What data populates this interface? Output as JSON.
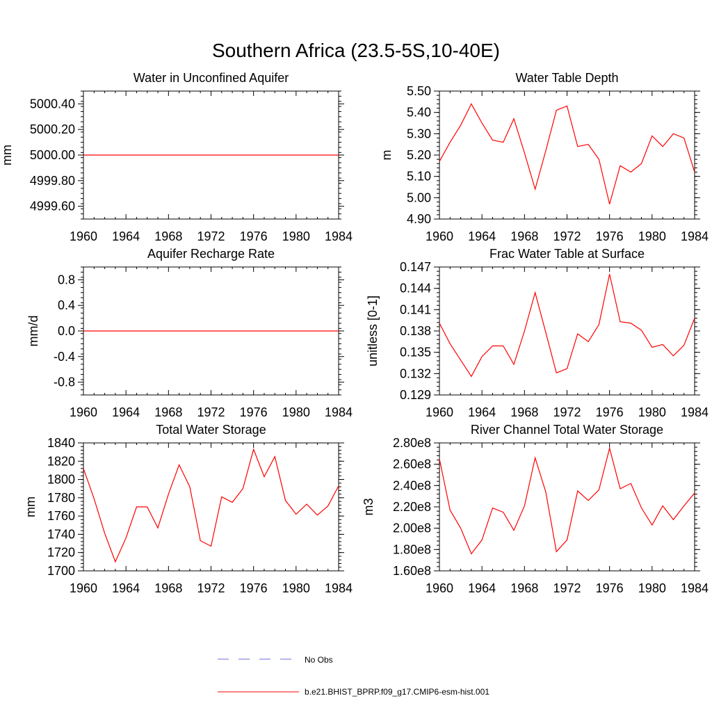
{
  "figure": {
    "title": "Southern Africa (23.5-5S,10-40E)",
    "legend": [
      {
        "label": "No Obs",
        "color": "#6a6ad8",
        "dash": "dashed"
      },
      {
        "label": "b.e21.BHIST_BPRP.f09_g17.CMIP6-esm-hist.001",
        "color": "#ff0000",
        "dash": "solid"
      }
    ]
  },
  "chart_data": [
    {
      "type": "line",
      "title": "Water in Unconfined Aquifer",
      "ylabel": "mm",
      "xlim": [
        1960,
        1984
      ],
      "ylim": [
        4999.5,
        5000.5
      ],
      "xticks": [
        1960,
        1964,
        1968,
        1972,
        1976,
        1980,
        1984
      ],
      "xtick_labels": [
        "1960",
        "1964",
        "1968",
        "1972",
        "1976",
        "1980",
        "1984"
      ],
      "yticks": [
        4999.6,
        4999.8,
        5000.0,
        5000.2,
        5000.4
      ],
      "ytick_labels": [
        "4999.60",
        "4999.80",
        "5000.00",
        "5000.20",
        "5000.40"
      ],
      "series": [
        {
          "name": "b.e21.BHIST_BPRP.f09_g17.CMIP6-esm-hist.001",
          "color": "#ff0000",
          "x": [
            1960,
            1961,
            1962,
            1963,
            1964,
            1965,
            1966,
            1967,
            1968,
            1969,
            1970,
            1971,
            1972,
            1973,
            1974,
            1975,
            1976,
            1977,
            1978,
            1979,
            1980,
            1981,
            1982,
            1983,
            1984
          ],
          "y": [
            5000.0,
            5000.0,
            5000.0,
            5000.0,
            5000.0,
            5000.0,
            5000.0,
            5000.0,
            5000.0,
            5000.0,
            5000.0,
            5000.0,
            5000.0,
            5000.0,
            5000.0,
            5000.0,
            5000.0,
            5000.0,
            5000.0,
            5000.0,
            5000.0,
            5000.0,
            5000.0,
            5000.0,
            5000.0
          ]
        }
      ]
    },
    {
      "type": "line",
      "title": "Water Table Depth",
      "ylabel": "m",
      "xlim": [
        1960,
        1984
      ],
      "ylim": [
        4.9,
        5.5
      ],
      "xticks": [
        1960,
        1964,
        1968,
        1972,
        1976,
        1980,
        1984
      ],
      "xtick_labels": [
        "1960",
        "1964",
        "1968",
        "1972",
        "1976",
        "1980",
        "1984"
      ],
      "yticks": [
        4.9,
        5.0,
        5.1,
        5.2,
        5.3,
        5.4,
        5.5
      ],
      "ytick_labels": [
        "4.90",
        "5.00",
        "5.10",
        "5.20",
        "5.30",
        "5.40",
        "5.50"
      ],
      "series": [
        {
          "name": "b.e21.BHIST_BPRP.f09_g17.CMIP6-esm-hist.001",
          "color": "#ff0000",
          "x": [
            1960,
            1961,
            1962,
            1963,
            1964,
            1965,
            1966,
            1967,
            1968,
            1969,
            1970,
            1971,
            1972,
            1973,
            1974,
            1975,
            1976,
            1977,
            1978,
            1979,
            1980,
            1981,
            1982,
            1983,
            1984
          ],
          "y": [
            5.17,
            5.26,
            5.34,
            5.44,
            5.35,
            5.27,
            5.26,
            5.37,
            5.21,
            5.04,
            5.22,
            5.41,
            5.43,
            5.24,
            5.25,
            5.18,
            4.97,
            5.15,
            5.12,
            5.16,
            5.29,
            5.24,
            5.3,
            5.28,
            5.12
          ]
        }
      ]
    },
    {
      "type": "line",
      "title": "Aquifer Recharge Rate",
      "ylabel": "mm/d",
      "xlim": [
        1960,
        1984
      ],
      "ylim": [
        -1.0,
        1.0
      ],
      "xticks": [
        1960,
        1964,
        1968,
        1972,
        1976,
        1980,
        1984
      ],
      "xtick_labels": [
        "1960",
        "1964",
        "1968",
        "1972",
        "1976",
        "1980",
        "1984"
      ],
      "yticks": [
        -0.8,
        -0.4,
        0.0,
        0.4,
        0.8
      ],
      "ytick_labels": [
        "-0.8",
        "-0.4",
        "0.0",
        "0.4",
        "0.8"
      ],
      "series": [
        {
          "name": "b.e21.BHIST_BPRP.f09_g17.CMIP6-esm-hist.001",
          "color": "#ff0000",
          "x": [
            1960,
            1961,
            1962,
            1963,
            1964,
            1965,
            1966,
            1967,
            1968,
            1969,
            1970,
            1971,
            1972,
            1973,
            1974,
            1975,
            1976,
            1977,
            1978,
            1979,
            1980,
            1981,
            1982,
            1983,
            1984
          ],
          "y": [
            0.0,
            0.0,
            0.0,
            0.0,
            0.0,
            0.0,
            0.0,
            0.0,
            0.0,
            0.0,
            0.0,
            0.0,
            0.0,
            0.0,
            0.0,
            0.0,
            0.0,
            0.0,
            0.0,
            0.0,
            0.0,
            0.0,
            0.0,
            0.0,
            0.0
          ]
        }
      ]
    },
    {
      "type": "line",
      "title": "Frac Water Table at Surface",
      "ylabel": "unitless [0-1]",
      "xlim": [
        1960,
        1984
      ],
      "ylim": [
        0.129,
        0.147
      ],
      "xticks": [
        1960,
        1964,
        1968,
        1972,
        1976,
        1980,
        1984
      ],
      "xtick_labels": [
        "1960",
        "1964",
        "1968",
        "1972",
        "1976",
        "1980",
        "1984"
      ],
      "yticks": [
        0.129,
        0.132,
        0.135,
        0.138,
        0.141,
        0.144,
        0.147
      ],
      "ytick_labels": [
        "0.129",
        "0.132",
        "0.135",
        "0.138",
        "0.141",
        "0.144",
        "0.147"
      ],
      "series": [
        {
          "name": "b.e21.BHIST_BPRP.f09_g17.CMIP6-esm-hist.001",
          "color": "#ff0000",
          "x": [
            1960,
            1961,
            1962,
            1963,
            1964,
            1965,
            1966,
            1967,
            1968,
            1969,
            1970,
            1971,
            1972,
            1973,
            1974,
            1975,
            1976,
            1977,
            1978,
            1979,
            1980,
            1981,
            1982,
            1983,
            1984
          ],
          "y": [
            0.1391,
            0.1362,
            0.1339,
            0.1316,
            0.1344,
            0.1359,
            0.1359,
            0.1333,
            0.138,
            0.1434,
            0.1378,
            0.1321,
            0.1327,
            0.1376,
            0.1365,
            0.1389,
            0.146,
            0.1393,
            0.1391,
            0.1381,
            0.1357,
            0.1361,
            0.1345,
            0.136,
            0.1398
          ]
        }
      ]
    },
    {
      "type": "line",
      "title": "Total Water Storage",
      "ylabel": "mm",
      "xlim": [
        1960,
        1984
      ],
      "ylim": [
        1700,
        1840
      ],
      "xticks": [
        1960,
        1964,
        1968,
        1972,
        1976,
        1980,
        1984
      ],
      "xtick_labels": [
        "1960",
        "1964",
        "1968",
        "1972",
        "1976",
        "1980",
        "1984"
      ],
      "yticks": [
        1700,
        1720,
        1740,
        1760,
        1780,
        1800,
        1820,
        1840
      ],
      "ytick_labels": [
        "1700",
        "1720",
        "1740",
        "1760",
        "1780",
        "1800",
        "1820",
        "1840"
      ],
      "series": [
        {
          "name": "b.e21.BHIST_BPRP.f09_g17.CMIP6-esm-hist.001",
          "color": "#ff0000",
          "x": [
            1960,
            1961,
            1962,
            1963,
            1964,
            1965,
            1966,
            1967,
            1968,
            1969,
            1970,
            1971,
            1972,
            1973,
            1974,
            1975,
            1976,
            1977,
            1978,
            1979,
            1980,
            1981,
            1982,
            1983,
            1984
          ],
          "y": [
            1812,
            1779,
            1741,
            1710,
            1736,
            1770,
            1770,
            1747,
            1784,
            1816,
            1792,
            1733,
            1727,
            1781,
            1775,
            1790,
            1833,
            1803,
            1825,
            1777,
            1762,
            1773,
            1761,
            1771,
            1793
          ]
        }
      ]
    },
    {
      "type": "line",
      "title": "River Channel Total Water Storage",
      "ylabel": "m3",
      "xlim": [
        1960,
        1984
      ],
      "ylim": [
        160000000,
        280000000
      ],
      "xticks": [
        1960,
        1964,
        1968,
        1972,
        1976,
        1980,
        1984
      ],
      "xtick_labels": [
        "1960",
        "1964",
        "1968",
        "1972",
        "1976",
        "1980",
        "1984"
      ],
      "yticks": [
        160000000,
        180000000,
        200000000,
        220000000,
        240000000,
        260000000,
        280000000
      ],
      "ytick_labels": [
        "1.60e8",
        "1.80e8",
        "2.00e8",
        "2.20e8",
        "2.40e8",
        "2.60e8",
        "2.80e8"
      ],
      "series": [
        {
          "name": "b.e21.BHIST_BPRP.f09_g17.CMIP6-esm-hist.001",
          "color": "#ff0000",
          "x": [
            1960,
            1961,
            1962,
            1963,
            1964,
            1965,
            1966,
            1967,
            1968,
            1969,
            1970,
            1971,
            1972,
            1973,
            1974,
            1975,
            1976,
            1977,
            1978,
            1979,
            1980,
            1981,
            1982,
            1983,
            1984
          ],
          "y": [
            265000000,
            217000000,
            200000000,
            176000000,
            189000000,
            219000000,
            215000000,
            198000000,
            221000000,
            266000000,
            234000000,
            178000000,
            189000000,
            235000000,
            226000000,
            236000000,
            275000000,
            237000000,
            242000000,
            219000000,
            203000000,
            221000000,
            208000000,
            221000000,
            233000000
          ]
        }
      ]
    }
  ]
}
